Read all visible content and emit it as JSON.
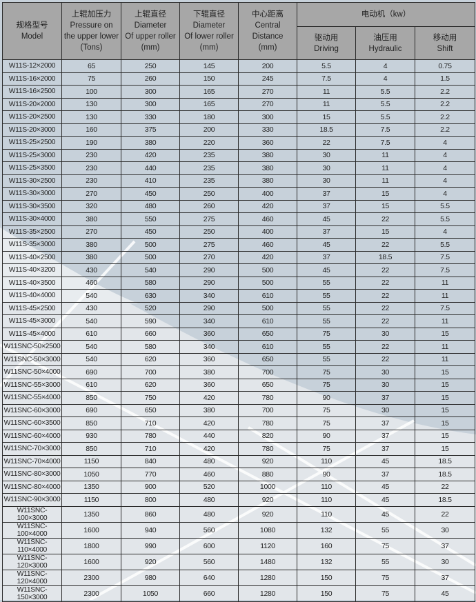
{
  "header": {
    "model": {
      "zh": "规格型号",
      "en": "Model"
    },
    "pressure": {
      "zh": "上辊加压力",
      "en1": "Pressure on",
      "en2": "the upper lower",
      "unit": "(Tons)"
    },
    "upper_diameter": {
      "zh": "上辊直径",
      "en1": "Diameter",
      "en2": "Of upper roller",
      "unit": "(mm)"
    },
    "lower_diameter": {
      "zh": "下辊直径",
      "en1": "Diameter",
      "en2": "Of lower roller",
      "unit": "(mm)"
    },
    "central_distance": {
      "zh": "中心距离",
      "en1": "Central",
      "en2": "Distance",
      "unit": "(mm)"
    },
    "motor": {
      "label": "电动机（kw）",
      "driving": {
        "zh": "驱动用",
        "en": "Driving"
      },
      "hydraulic": {
        "zh": "油压用",
        "en": "Hydraulic"
      },
      "shift": {
        "zh": "移动用",
        "en": "Shift"
      }
    }
  },
  "rows": [
    [
      "W11S-12×2000",
      "65",
      "250",
      "145",
      "200",
      "5.5",
      "4",
      "0.75"
    ],
    [
      "W11S-16×2000",
      "75",
      "260",
      "150",
      "245",
      "7.5",
      "4",
      "1.5"
    ],
    [
      "W11S-16×2500",
      "100",
      "300",
      "165",
      "270",
      "11",
      "5.5",
      "2.2"
    ],
    [
      "W11S-20×2000",
      "130",
      "300",
      "165",
      "270",
      "11",
      "5.5",
      "2.2"
    ],
    [
      "W11S-20×2500",
      "130",
      "330",
      "180",
      "300",
      "15",
      "5.5",
      "2.2"
    ],
    [
      "W11S-20×3000",
      "160",
      "375",
      "200",
      "330",
      "18.5",
      "7.5",
      "2.2"
    ],
    [
      "W11S-25×2500",
      "190",
      "380",
      "220",
      "360",
      "22",
      "7.5",
      "4"
    ],
    [
      "W11S-25×3000",
      "230",
      "420",
      "235",
      "380",
      "30",
      "11",
      "4"
    ],
    [
      "W11S-25×3500",
      "230",
      "440",
      "235",
      "380",
      "30",
      "11",
      "4"
    ],
    [
      "W11S-30×2500",
      "230",
      "410",
      "235",
      "380",
      "30",
      "11",
      "4"
    ],
    [
      "W11S-30×3000",
      "270",
      "450",
      "250",
      "400",
      "37",
      "15",
      "4"
    ],
    [
      "W11S-30×3500",
      "320",
      "480",
      "260",
      "420",
      "37",
      "15",
      "5.5"
    ],
    [
      "W11S-30×4000",
      "380",
      "550",
      "275",
      "460",
      "45",
      "22",
      "5.5"
    ],
    [
      "W11S-35×2500",
      "270",
      "450",
      "250",
      "400",
      "37",
      "15",
      "4"
    ],
    [
      "W11S-35×3000",
      "380",
      "500",
      "275",
      "460",
      "45",
      "22",
      "5.5"
    ],
    [
      "W11S-40×2500",
      "380",
      "500",
      "270",
      "420",
      "37",
      "18.5",
      "7.5"
    ],
    [
      "W11S-40×3200",
      "430",
      "540",
      "290",
      "500",
      "45",
      "22",
      "7.5"
    ],
    [
      "W11S-40×3500",
      "460",
      "580",
      "290",
      "500",
      "55",
      "22",
      "11"
    ],
    [
      "W11S-40×4000",
      "540",
      "630",
      "340",
      "610",
      "55",
      "22",
      "11"
    ],
    [
      "W11S-45×2500",
      "430",
      "520",
      "290",
      "500",
      "55",
      "22",
      "7.5"
    ],
    [
      "W11S-45×3000",
      "540",
      "590",
      "340",
      "610",
      "55",
      "22",
      "11"
    ],
    [
      "W11S-45×4000",
      "610",
      "660",
      "360",
      "650",
      "75",
      "30",
      "15"
    ],
    [
      "W11SNC-50×2500",
      "540",
      "580",
      "340",
      "610",
      "55",
      "22",
      "11"
    ],
    [
      "W11SNC-50×3000",
      "540",
      "620",
      "360",
      "650",
      "55",
      "22",
      "11"
    ],
    [
      "W11SNC-50×4000",
      "690",
      "700",
      "380",
      "700",
      "75",
      "30",
      "15"
    ],
    [
      "W11SNC-55×3000",
      "610",
      "620",
      "360",
      "650",
      "75",
      "30",
      "15"
    ],
    [
      "W11SNC-55×4000",
      "850",
      "750",
      "420",
      "780",
      "90",
      "37",
      "15"
    ],
    [
      "W11SNC-60×3000",
      "690",
      "650",
      "380",
      "700",
      "75",
      "30",
      "15"
    ],
    [
      "W11SNC-60×3500",
      "850",
      "710",
      "420",
      "780",
      "75",
      "37",
      "15"
    ],
    [
      "W11SNC-60×4000",
      "930",
      "780",
      "440",
      "820",
      "90",
      "37",
      "15"
    ],
    [
      "W11SNC-70×3000",
      "850",
      "710",
      "420",
      "780",
      "75",
      "37",
      "15"
    ],
    [
      "W11SNC-70×4000",
      "1150",
      "840",
      "480",
      "920",
      "110",
      "45",
      "18.5"
    ],
    [
      "W11SNC-80×3000",
      "1050",
      "770",
      "460",
      "880",
      "90",
      "37",
      "18.5"
    ],
    [
      "W11SNC-80×4000",
      "1350",
      "900",
      "520",
      "1000",
      "110",
      "45",
      "22"
    ],
    [
      "W11SNC-90×3000",
      "1150",
      "800",
      "480",
      "920",
      "110",
      "45",
      "18.5"
    ],
    [
      "W11SNC-100×3000",
      "1350",
      "860",
      "480",
      "920",
      "110",
      "45",
      "22"
    ],
    [
      "W11SNC-100×4000",
      "1600",
      "940",
      "560",
      "1080",
      "132",
      "55",
      "30"
    ],
    [
      "W11SNC-110×4000",
      "1800",
      "990",
      "600",
      "1120",
      "160",
      "75",
      "37"
    ],
    [
      "W11SNC-120×3000",
      "1600",
      "920",
      "560",
      "1480",
      "132",
      "55",
      "30"
    ],
    [
      "W11SNC-120×4000",
      "2300",
      "980",
      "640",
      "1280",
      "150",
      "75",
      "37"
    ],
    [
      "W11SNC-150×3000",
      "2300",
      "1050",
      "660",
      "1280",
      "150",
      "75",
      "45"
    ]
  ],
  "colors": {
    "header_bg": "#a7a7a7",
    "body_bg": "#c7d1da",
    "light_area": "#e4e8ec",
    "border": "#2a2a2a"
  }
}
